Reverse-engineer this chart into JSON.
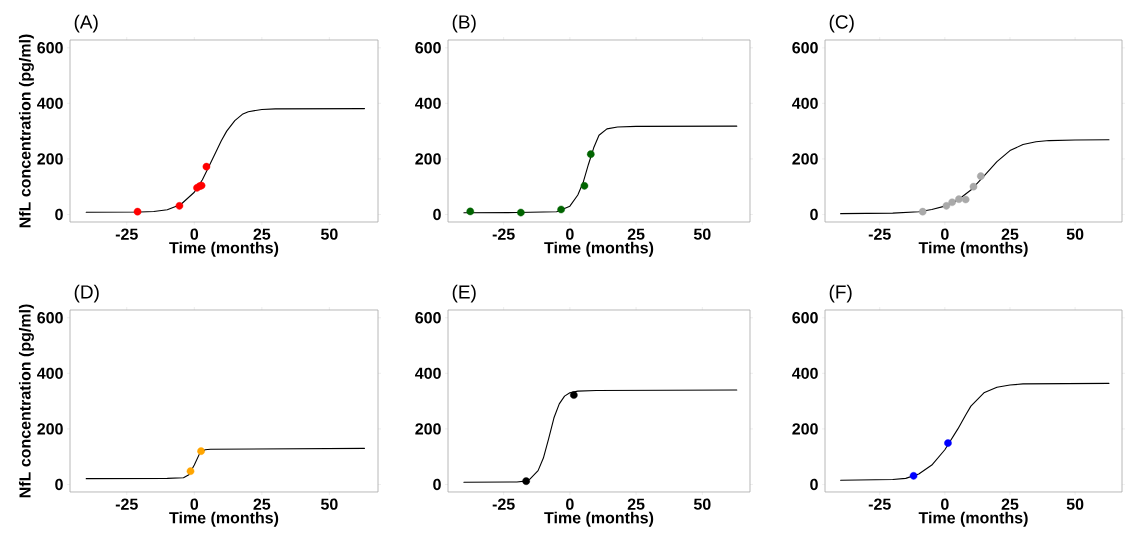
{
  "chart_data": [
    {
      "type": "scatter",
      "title": "(A)",
      "xlabel": "Time (months)",
      "ylabel": "NfL concentration (pg/ml)",
      "xlim": [
        -46,
        68
      ],
      "ylim": [
        -27,
        628
      ],
      "xticks": [
        -25,
        0,
        25,
        50
      ],
      "yticks": [
        0,
        200,
        400,
        600
      ],
      "grid": false,
      "series": [
        {
          "type": "line",
          "color": "#000000",
          "x": [
            -40,
            -20,
            -15,
            -10,
            -5,
            0,
            3,
            5,
            8,
            10,
            12,
            15,
            18,
            20,
            25,
            30,
            63
          ],
          "values": [
            8,
            9,
            11,
            17,
            36,
            80,
            125,
            165,
            225,
            265,
            300,
            338,
            362,
            370,
            378,
            380,
            381
          ]
        },
        {
          "marker": "circle",
          "color": "#ff0000",
          "x": [
            -21,
            -5.5,
            1,
            2,
            2.7,
            4.5
          ],
          "values": [
            10,
            31,
            96,
            102,
            104,
            172
          ]
        }
      ]
    },
    {
      "type": "scatter",
      "title": "(B)",
      "xlabel": "Time (months)",
      "xlim": [
        -46,
        68
      ],
      "ylim": [
        -27,
        628
      ],
      "xticks": [
        -25,
        0,
        25,
        50
      ],
      "yticks": [
        0,
        200,
        400,
        600
      ],
      "grid": false,
      "series": [
        {
          "type": "line",
          "color": "#000000",
          "x": [
            -40,
            -20,
            -5,
            0,
            3,
            5,
            7,
            9,
            11,
            14,
            18,
            25,
            63
          ],
          "values": [
            6,
            7,
            10,
            30,
            70,
            115,
            180,
            240,
            285,
            308,
            315,
            317,
            318
          ]
        },
        {
          "marker": "circle",
          "color": "#006400",
          "x": [
            -37.6,
            -18.5,
            -3.3,
            5.5,
            7.9
          ],
          "values": [
            11,
            7,
            18,
            103,
            217
          ]
        }
      ]
    },
    {
      "type": "scatter",
      "title": "(C)",
      "xlabel": "Time (months)",
      "xlim": [
        -46,
        68
      ],
      "ylim": [
        -27,
        628
      ],
      "xticks": [
        -25,
        0,
        25,
        50
      ],
      "yticks": [
        0,
        200,
        400,
        600
      ],
      "grid": false,
      "series": [
        {
          "type": "line",
          "color": "#000000",
          "x": [
            -40,
            -20,
            -10,
            -5,
            0,
            5,
            10,
            15,
            20,
            25,
            30,
            35,
            40,
            50,
            63
          ],
          "values": [
            3,
            5,
            10,
            18,
            30,
            52,
            88,
            138,
            190,
            230,
            252,
            262,
            266,
            268,
            269
          ]
        },
        {
          "marker": "circle",
          "color": "#a9a9a9",
          "x": [
            -8.5,
            0.6,
            2.8,
            5.4,
            8,
            11,
            13.8
          ],
          "values": [
            10,
            31,
            44,
            55,
            54,
            100,
            138
          ]
        }
      ]
    },
    {
      "type": "scatter",
      "title": "(D)",
      "xlabel": "Time (months)",
      "ylabel": "NfL concentration (pg/ml)",
      "xlim": [
        -46,
        68
      ],
      "ylim": [
        -27,
        628
      ],
      "xticks": [
        -25,
        0,
        25,
        50
      ],
      "yticks": [
        0,
        200,
        400,
        600
      ],
      "grid": false,
      "series": [
        {
          "type": "line",
          "color": "#000000",
          "x": [
            -40,
            -10,
            -4,
            -2,
            0,
            2,
            4,
            6,
            63
          ],
          "values": [
            21,
            22,
            24,
            35,
            70,
            112,
            125,
            127,
            130
          ]
        },
        {
          "marker": "circle",
          "color": "#ffa500",
          "x": [
            -1.4,
            2.5
          ],
          "values": [
            48,
            120
          ]
        }
      ]
    },
    {
      "type": "scatter",
      "title": "(E)",
      "xlabel": "Time (months)",
      "xlim": [
        -46,
        68
      ],
      "ylim": [
        -27,
        628
      ],
      "xticks": [
        -25,
        0,
        25,
        50
      ],
      "yticks": [
        0,
        200,
        400,
        600
      ],
      "grid": false,
      "series": [
        {
          "type": "line",
          "color": "#000000",
          "x": [
            -40,
            -20,
            -17,
            -15,
            -12,
            -10,
            -8,
            -6,
            -4,
            -2,
            0,
            3,
            10,
            63
          ],
          "values": [
            8,
            9,
            12,
            20,
            50,
            95,
            165,
            240,
            290,
            318,
            330,
            336,
            338,
            340
          ]
        },
        {
          "marker": "circle",
          "color": "#000000",
          "x": [
            -16.5,
            1.5
          ],
          "values": [
            12,
            322
          ]
        }
      ]
    },
    {
      "type": "scatter",
      "title": "(F)",
      "xlabel": "Time (months)",
      "xlim": [
        -46,
        68
      ],
      "ylim": [
        -27,
        628
      ],
      "xticks": [
        -25,
        0,
        25,
        50
      ],
      "yticks": [
        0,
        200,
        400,
        600
      ],
      "grid": false,
      "series": [
        {
          "type": "line",
          "color": "#000000",
          "x": [
            -40,
            -20,
            -15,
            -10,
            -5,
            0,
            5,
            8,
            10,
            15,
            20,
            25,
            30,
            63
          ],
          "values": [
            15,
            18,
            22,
            38,
            70,
            125,
            200,
            250,
            282,
            330,
            350,
            358,
            362,
            364
          ]
        },
        {
          "marker": "circle",
          "color": "#0000ff",
          "x": [
            -12,
            1.2
          ],
          "values": [
            31,
            149
          ]
        }
      ]
    }
  ]
}
